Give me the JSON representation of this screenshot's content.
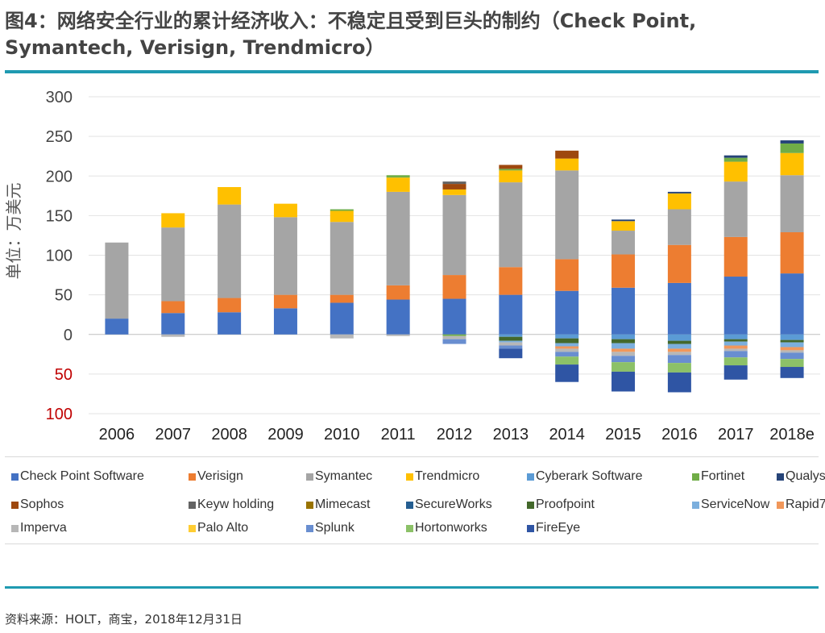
{
  "figure": {
    "title": "图4：网络安全行业的累计经济收入：不稳定且受到巨头的制约（Check Point, Symantech, Verisign, Trendmicro）",
    "source": "资料来源：HOLT，商宝，2018年12月31日"
  },
  "chart_data": {
    "type": "bar",
    "stacked": true,
    "ylabel": "单位：万美元",
    "ylim": [
      -100,
      300
    ],
    "yticks": [
      300,
      250,
      200,
      150,
      100,
      50,
      0,
      -50,
      -100
    ],
    "ytick_labels": [
      "300",
      "250",
      "200",
      "150",
      "100",
      "50",
      "0",
      "50",
      "100"
    ],
    "grid": true,
    "legend_position": "bottom",
    "categories": [
      "2006",
      "2007",
      "2008",
      "2009",
      "2010",
      "2011",
      "2012",
      "2013",
      "2014",
      "2015",
      "2016",
      "2017",
      "2018e"
    ],
    "series": [
      {
        "name": "Check Point Software",
        "color": "#4472c4",
        "values": [
          20,
          27,
          28,
          33,
          40,
          44,
          45,
          50,
          55,
          59,
          65,
          73,
          77
        ]
      },
      {
        "name": "Verisign",
        "color": "#ed7d31",
        "values": [
          0,
          15,
          18,
          17,
          10,
          18,
          30,
          35,
          40,
          42,
          48,
          50,
          52
        ]
      },
      {
        "name": "Symantec",
        "color": "#a5a5a5",
        "values": [
          96,
          93,
          118,
          98,
          92,
          118,
          101,
          107,
          112,
          30,
          45,
          70,
          72
        ]
      },
      {
        "name": "Trendmicro",
        "color": "#ffc000",
        "values": [
          0,
          18,
          22,
          17,
          14,
          18,
          7,
          15,
          15,
          12,
          20,
          25,
          28
        ]
      },
      {
        "name": "Cyberark Software",
        "color": "#5b9bd5",
        "values": [
          0,
          0,
          0,
          0,
          0,
          0,
          0,
          -3,
          -5,
          -6,
          -8,
          -6,
          -7
        ]
      },
      {
        "name": "Fortinet",
        "color": "#70ad47",
        "values": [
          0,
          0,
          0,
          0,
          2,
          3,
          -2,
          2,
          0,
          0,
          0,
          5,
          12
        ]
      },
      {
        "name": "Qualys",
        "color": "#264478",
        "values": [
          0,
          0,
          0,
          0,
          0,
          0,
          0,
          0,
          0,
          2,
          2,
          3,
          4
        ]
      },
      {
        "name": "Sophos",
        "color": "#9e480e",
        "values": [
          0,
          0,
          0,
          0,
          0,
          0,
          7,
          5,
          10,
          0,
          0,
          0,
          0
        ]
      },
      {
        "name": "Keyw holding",
        "color": "#636363",
        "values": [
          0,
          0,
          0,
          0,
          0,
          0,
          3,
          0,
          0,
          0,
          0,
          0,
          0
        ]
      },
      {
        "name": "Mimecast",
        "color": "#997300",
        "values": [
          0,
          0,
          0,
          0,
          0,
          0,
          0,
          0,
          0,
          0,
          0,
          0,
          0
        ]
      },
      {
        "name": "SecureWorks",
        "color": "#255e91",
        "values": [
          0,
          0,
          0,
          0,
          0,
          0,
          0,
          0,
          0,
          0,
          0,
          0,
          0
        ]
      },
      {
        "name": "Proofpoint",
        "color": "#43682b",
        "values": [
          0,
          0,
          0,
          0,
          0,
          0,
          0,
          -5,
          -6,
          -5,
          -4,
          -3,
          -3
        ]
      },
      {
        "name": "ServiceNow",
        "color": "#7cafdd",
        "values": [
          0,
          0,
          0,
          0,
          0,
          0,
          0,
          -2,
          -4,
          -7,
          -6,
          -5,
          -6
        ]
      },
      {
        "name": "Rapid7",
        "color": "#f1975a",
        "values": [
          0,
          0,
          0,
          0,
          0,
          0,
          0,
          0,
          -3,
          -4,
          -4,
          -4,
          -4
        ]
      },
      {
        "name": "Imperva",
        "color": "#b7b7b7",
        "values": [
          0,
          -3,
          0,
          0,
          -5,
          -2,
          -4,
          -4,
          -4,
          -5,
          -4,
          -3,
          -3
        ]
      },
      {
        "name": "Palo Alto",
        "color": "#ffcd33",
        "values": [
          0,
          0,
          0,
          0,
          0,
          0,
          0,
          0,
          0,
          0,
          0,
          0,
          0
        ]
      },
      {
        "name": "Splunk",
        "color": "#698ed0",
        "values": [
          0,
          0,
          0,
          0,
          0,
          0,
          -6,
          -4,
          -6,
          -8,
          -10,
          -8,
          -8
        ]
      },
      {
        "name": "Hortonworks",
        "color": "#8cc168",
        "values": [
          0,
          0,
          0,
          0,
          0,
          0,
          0,
          0,
          -10,
          -12,
          -12,
          -10,
          -10
        ]
      },
      {
        "name": "FireEye",
        "color": "#2f55a4",
        "values": [
          0,
          0,
          0,
          0,
          0,
          0,
          0,
          -12,
          -22,
          -25,
          -25,
          -18,
          -14
        ]
      }
    ]
  }
}
